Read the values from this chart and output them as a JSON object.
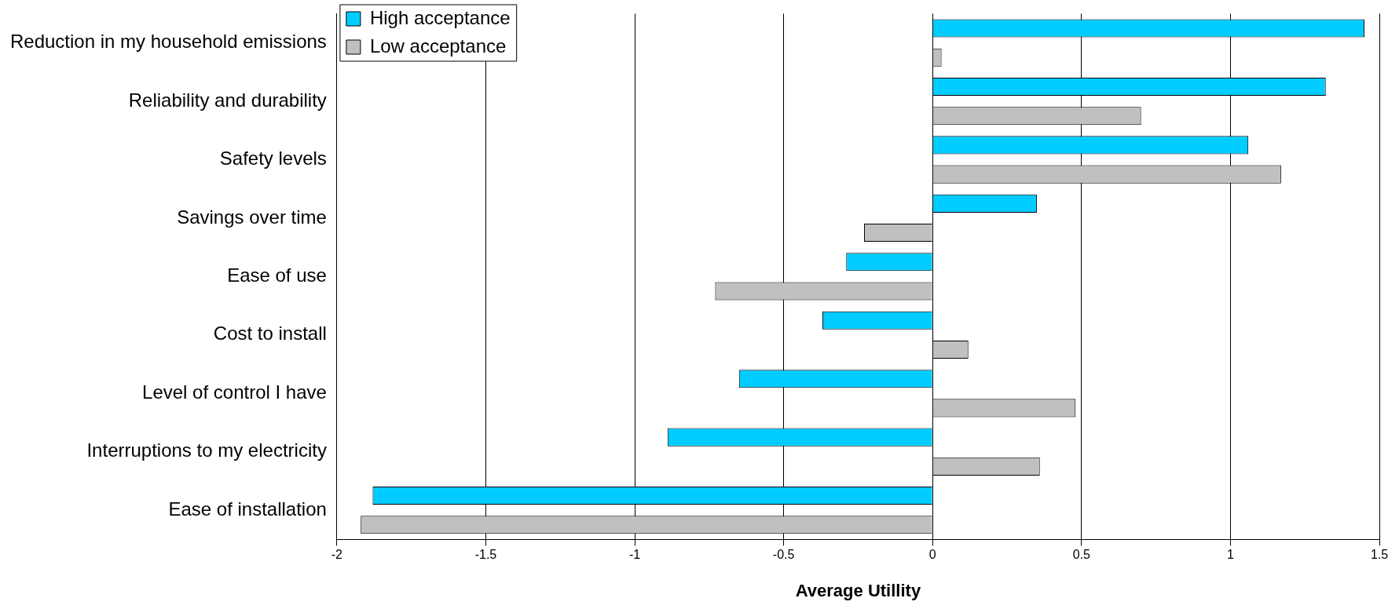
{
  "chart_data": {
    "type": "bar",
    "orientation": "horizontal",
    "xlabel": "Average Utillity",
    "categories": [
      "Reduction in my household emissions",
      "Reliability and durability",
      "Safety levels",
      "Savings over time",
      "Ease of use",
      "Cost to install",
      "Level of control I have",
      "Interruptions to my electricity",
      "Ease of installation"
    ],
    "series": [
      {
        "name": "High acceptance",
        "color": "#00ccff",
        "values": [
          1.45,
          1.32,
          1.06,
          0.35,
          -0.29,
          -0.37,
          -0.65,
          -0.89,
          -1.88
        ]
      },
      {
        "name": "Low acceptance",
        "color": "#c0c0c0",
        "values": [
          0.03,
          0.7,
          1.17,
          -0.23,
          -0.73,
          0.12,
          0.48,
          0.36,
          -1.92
        ]
      }
    ],
    "xlim": [
      -2,
      1.5
    ],
    "xticks": [
      -2,
      -1.5,
      -1,
      -0.5,
      0,
      0.5,
      1,
      1.5
    ],
    "grid": "x",
    "legend": "top left"
  }
}
